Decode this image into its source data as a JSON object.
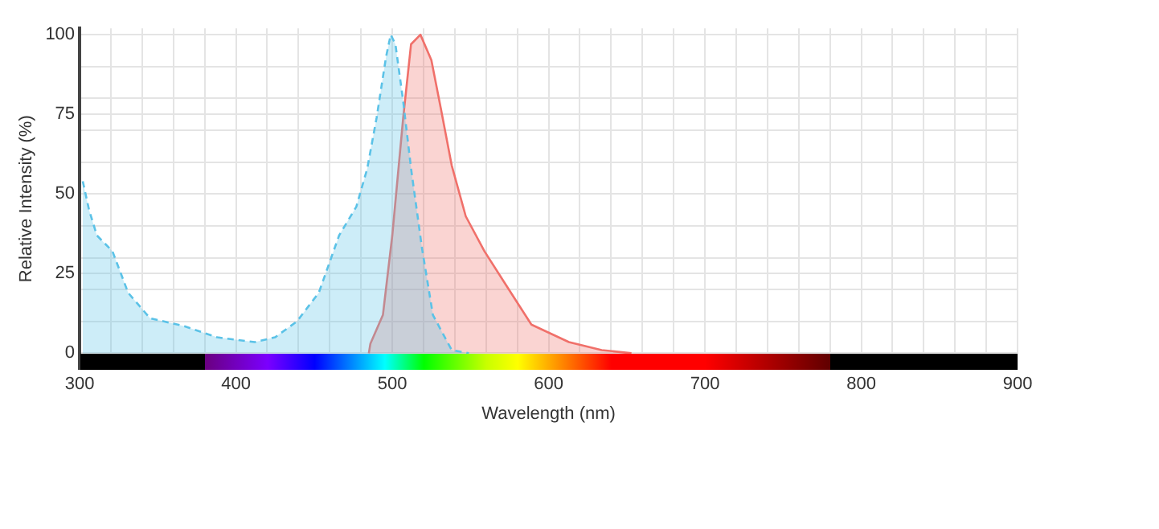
{
  "chart_data": {
    "type": "area",
    "xlabel": "Wavelength (nm)",
    "ylabel": "Relative Intensity (%)",
    "xlim": [
      300,
      900
    ],
    "ylim": [
      -5,
      102
    ],
    "xticks": [
      300,
      {
        "value": 320,
        "label": null
      },
      {
        "value": 340,
        "label": null
      },
      {
        "value": 360,
        "label": null
      },
      {
        "value": 380,
        "label": null
      },
      400,
      {
        "value": 420,
        "label": null
      },
      {
        "value": 440,
        "label": null
      },
      {
        "value": 460,
        "label": null
      },
      {
        "value": 480,
        "label": null
      },
      500,
      {
        "value": 520,
        "label": null
      },
      {
        "value": 540,
        "label": null
      },
      {
        "value": 560,
        "label": null
      },
      {
        "value": 580,
        "label": null
      },
      600,
      {
        "value": 620,
        "label": null
      },
      {
        "value": 640,
        "label": null
      },
      {
        "value": 660,
        "label": null
      },
      {
        "value": 680,
        "label": null
      },
      700,
      {
        "value": 720,
        "label": null
      },
      {
        "value": 740,
        "label": null
      },
      {
        "value": 760,
        "label": null
      },
      {
        "value": 780,
        "label": null
      },
      800,
      {
        "value": 820,
        "label": null
      },
      {
        "value": 840,
        "label": null
      },
      {
        "value": 860,
        "label": null
      },
      {
        "value": 880,
        "label": null
      },
      900
    ],
    "yticks": [
      0,
      {
        "value": 10,
        "label": null
      },
      {
        "value": 20,
        "label": null
      },
      25,
      {
        "value": 30,
        "label": null
      },
      {
        "value": 40,
        "label": null
      },
      50,
      {
        "value": 60,
        "label": null
      },
      {
        "value": 70,
        "label": null
      },
      75,
      {
        "value": 80,
        "label": null
      },
      {
        "value": 90,
        "label": null
      },
      100
    ],
    "grid": true,
    "legend": false,
    "marker": "none",
    "series": [
      {
        "color": "#5bc2e7",
        "line_style": "dashed",
        "x": [
          302,
          306,
          311,
          321,
          331,
          345,
          367,
          388,
          412,
          425,
          439,
          453,
          466,
          477,
          484,
          490,
          496,
          499,
          502,
          507,
          512,
          519,
          526,
          538,
          549
        ],
        "values": [
          54,
          45,
          37,
          32,
          19,
          11,
          8.5,
          5,
          3.5,
          5,
          10,
          19,
          37,
          46,
          58,
          74,
          93,
          100,
          97,
          79,
          58,
          33,
          12,
          1,
          0
        ]
      },
      {
        "color": "#f0706a",
        "line_style": "solid",
        "x": [
          485,
          486,
          494,
          500,
          507,
          512,
          518,
          525,
          531,
          538,
          547,
          559,
          572,
          589,
          613,
          634,
          653
        ],
        "values": [
          0,
          3,
          12,
          37,
          74,
          97,
          100,
          92,
          77,
          59,
          43,
          32,
          22,
          9,
          3.5,
          1,
          0
        ]
      }
    ]
  }
}
